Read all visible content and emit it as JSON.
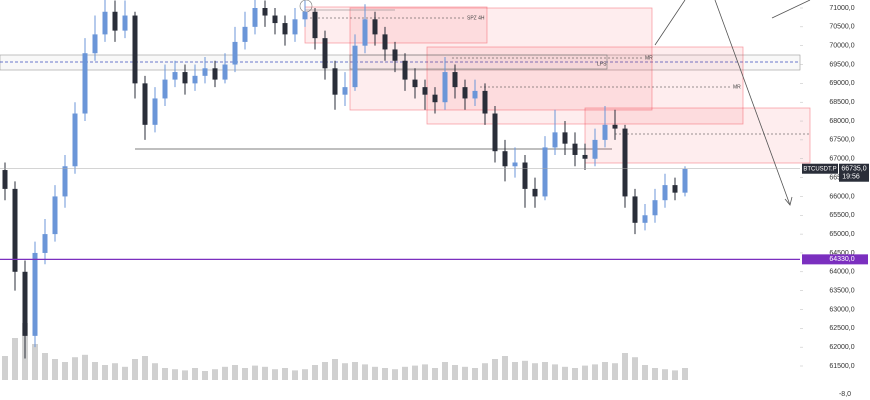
{
  "chart_data": {
    "type": "candlestick",
    "series": [
      {
        "name": "BTCUSDT.P",
        "up_color": "#6b96d8",
        "down_color": "#2a2e39",
        "open": [
          66700,
          66200,
          64000,
          62300,
          64500,
          65000,
          66000,
          66800,
          68200,
          69800,
          70300,
          70900,
          70400,
          70800,
          69000,
          67900,
          68600,
          69100,
          69300,
          69000,
          69200,
          69400,
          69100,
          69500,
          70100,
          70500,
          71000,
          70800,
          70600,
          70300,
          70700,
          70900,
          70200,
          69400,
          68700,
          68900,
          70000,
          70700,
          70300,
          69900,
          69600,
          69100,
          68900,
          68700,
          68500,
          69300,
          68900,
          68600,
          68800,
          68200,
          67200,
          66800,
          66900,
          66200,
          66000,
          67300,
          67700,
          67400,
          67100,
          67000,
          67500,
          67900,
          67800,
          66000,
          65300,
          65500,
          65900,
          66300,
          66100
        ],
        "high": [
          66900,
          66400,
          64300,
          64800,
          65400,
          66300,
          67100,
          68500,
          70200,
          70800,
          71300,
          71200,
          71200,
          70900,
          69200,
          68900,
          69500,
          69600,
          69500,
          69500,
          69700,
          69600,
          69800,
          70500,
          70900,
          71300,
          71200,
          71000,
          70800,
          71000,
          71200,
          71000,
          70400,
          69600,
          69300,
          70300,
          71100,
          70900,
          70500,
          70100,
          69800,
          69400,
          69100,
          68900,
          69700,
          69500,
          69100,
          69100,
          69000,
          68400,
          67500,
          67300,
          67100,
          66500,
          67600,
          68300,
          68000,
          67700,
          67400,
          67800,
          68400,
          68300,
          67900,
          66200,
          65800,
          66200,
          66600,
          66500,
          66800
        ],
        "low": [
          65900,
          63500,
          61700,
          62000,
          64200,
          64800,
          65700,
          66600,
          68000,
          69600,
          70100,
          70100,
          70200,
          68600,
          67500,
          67700,
          68400,
          68900,
          68700,
          68800,
          69000,
          68900,
          69000,
          69300,
          69900,
          70300,
          70500,
          70300,
          70000,
          70100,
          70500,
          69900,
          69100,
          68300,
          68400,
          68800,
          69800,
          70000,
          69600,
          69300,
          68800,
          68600,
          68300,
          68200,
          68300,
          68600,
          68300,
          68400,
          67900,
          66900,
          66400,
          66500,
          65700,
          65700,
          65900,
          67100,
          67100,
          66800,
          66700,
          66800,
          67300,
          67500,
          65700,
          65000,
          65100,
          65300,
          65700,
          65900,
          66000
        ],
        "close": [
          66200,
          64000,
          62300,
          64500,
          65000,
          66000,
          66800,
          68200,
          69800,
          70300,
          70900,
          70400,
          70800,
          69000,
          67900,
          68600,
          69100,
          69300,
          69000,
          69200,
          69400,
          69100,
          69500,
          70100,
          70500,
          71000,
          70800,
          70600,
          70300,
          70700,
          70900,
          70200,
          69400,
          68700,
          68900,
          70000,
          70700,
          70300,
          69900,
          69600,
          69100,
          68900,
          68700,
          68500,
          69300,
          68900,
          68600,
          68800,
          68200,
          67200,
          66800,
          66900,
          66200,
          66000,
          67300,
          67700,
          67400,
          67100,
          67000,
          67500,
          67900,
          67800,
          66000,
          65300,
          65500,
          65900,
          66300,
          66100,
          66735
        ],
        "volume": [
          40,
          70,
          95,
          60,
          45,
          35,
          30,
          38,
          42,
          30,
          25,
          28,
          22,
          35,
          40,
          28,
          20,
          18,
          16,
          20,
          15,
          18,
          22,
          25,
          20,
          24,
          22,
          18,
          20,
          16,
          18,
          25,
          30,
          35,
          28,
          30,
          26,
          22,
          20,
          18,
          22,
          24,
          26,
          20,
          30,
          25,
          22,
          20,
          28,
          35,
          40,
          30,
          32,
          28,
          30,
          26,
          22,
          20,
          24,
          26,
          30,
          28,
          45,
          38,
          25,
          20,
          18,
          16,
          20
        ],
        "volume_lim": [
          0,
          100
        ]
      }
    ],
    "ylim": [
      61500,
      71000
    ],
    "yticks": [
      {
        "value": 61500,
        "label": "61500,0"
      },
      {
        "value": 62000,
        "label": "62000,0"
      },
      {
        "value": 62500,
        "label": "62500,0"
      },
      {
        "value": 63000,
        "label": "63000,0"
      },
      {
        "value": 63500,
        "label": "63500,0"
      },
      {
        "value": 64000,
        "label": "64000,0"
      },
      {
        "value": 64500,
        "label": "64500,0"
      },
      {
        "value": 65000,
        "label": "65000,0"
      },
      {
        "value": 65500,
        "label": "65500,0"
      },
      {
        "value": 66000,
        "label": "66000,0"
      },
      {
        "value": 66500,
        "label": "66500,0"
      },
      {
        "value": 67000,
        "label": "67000,0"
      },
      {
        "value": 67500,
        "label": "67500,0"
      },
      {
        "value": 68000,
        "label": "68000,0"
      },
      {
        "value": 68500,
        "label": "68500,0"
      },
      {
        "value": 69000,
        "label": "69000,0"
      },
      {
        "value": 69500,
        "label": "69500,0"
      },
      {
        "value": 70000,
        "label": "70000,0"
      },
      {
        "value": 70500,
        "label": "70500,0"
      },
      {
        "value": 71000,
        "label": "71000,0"
      }
    ],
    "last_price": {
      "value": 66735,
      "label": "66735,0"
    },
    "countdown": "19:56",
    "level_line": {
      "value": 64330,
      "label": "64330,0",
      "color": "#7b2fbf"
    },
    "annotations": [
      "SPZ 4H",
      "LPS",
      "MR",
      "MR"
    ],
    "bottom_label": "-8,0"
  }
}
